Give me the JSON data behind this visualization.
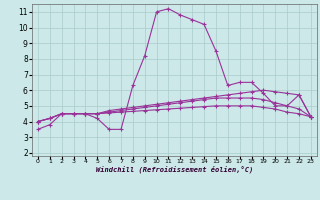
{
  "xlabel": "Windchill (Refroidissement éolien,°C)",
  "background_color": "#cce8e8",
  "grid_color": "#aacaca",
  "line_color": "#993399",
  "xlim": [
    -0.5,
    23.5
  ],
  "ylim": [
    1.8,
    11.5
  ],
  "xticks": [
    0,
    1,
    2,
    3,
    4,
    5,
    6,
    7,
    8,
    9,
    10,
    11,
    12,
    13,
    14,
    15,
    16,
    17,
    18,
    19,
    20,
    21,
    22,
    23
  ],
  "yticks": [
    2,
    3,
    4,
    5,
    6,
    7,
    8,
    9,
    10,
    11
  ],
  "line1_x": [
    0,
    1,
    2,
    3,
    4,
    5,
    6,
    7,
    8,
    9,
    10,
    11,
    12,
    13,
    14,
    15,
    16,
    17,
    18,
    19,
    20,
    21,
    22,
    23
  ],
  "line1_y": [
    3.5,
    3.8,
    4.5,
    4.5,
    4.5,
    4.2,
    3.5,
    3.5,
    6.3,
    8.2,
    11.0,
    11.2,
    10.8,
    10.5,
    10.2,
    8.5,
    6.3,
    6.5,
    6.5,
    5.8,
    5.0,
    5.0,
    5.7,
    4.3
  ],
  "line2_x": [
    0,
    1,
    2,
    3,
    4,
    5,
    6,
    7,
    8,
    9,
    10,
    11,
    12,
    13,
    14,
    15,
    16,
    17,
    18,
    19,
    20,
    21,
    22,
    23
  ],
  "line2_y": [
    4.0,
    4.2,
    4.5,
    4.5,
    4.5,
    4.5,
    4.7,
    4.8,
    4.9,
    5.0,
    5.1,
    5.2,
    5.3,
    5.4,
    5.5,
    5.6,
    5.7,
    5.8,
    5.9,
    6.0,
    5.9,
    5.8,
    5.7,
    4.3
  ],
  "line3_x": [
    0,
    1,
    2,
    3,
    4,
    5,
    6,
    7,
    8,
    9,
    10,
    11,
    12,
    13,
    14,
    15,
    16,
    17,
    18,
    19,
    20,
    21,
    22,
    23
  ],
  "line3_y": [
    4.0,
    4.2,
    4.5,
    4.5,
    4.5,
    4.5,
    4.6,
    4.7,
    4.8,
    4.9,
    5.0,
    5.1,
    5.2,
    5.3,
    5.4,
    5.5,
    5.5,
    5.5,
    5.5,
    5.4,
    5.2,
    5.0,
    4.8,
    4.3
  ],
  "line4_x": [
    0,
    1,
    2,
    3,
    4,
    5,
    6,
    7,
    8,
    9,
    10,
    11,
    12,
    13,
    14,
    15,
    16,
    17,
    18,
    19,
    20,
    21,
    22,
    23
  ],
  "line4_y": [
    4.0,
    4.2,
    4.5,
    4.5,
    4.5,
    4.5,
    4.55,
    4.6,
    4.65,
    4.7,
    4.75,
    4.8,
    4.85,
    4.9,
    4.95,
    5.0,
    5.0,
    5.0,
    5.0,
    4.9,
    4.8,
    4.6,
    4.5,
    4.3
  ]
}
